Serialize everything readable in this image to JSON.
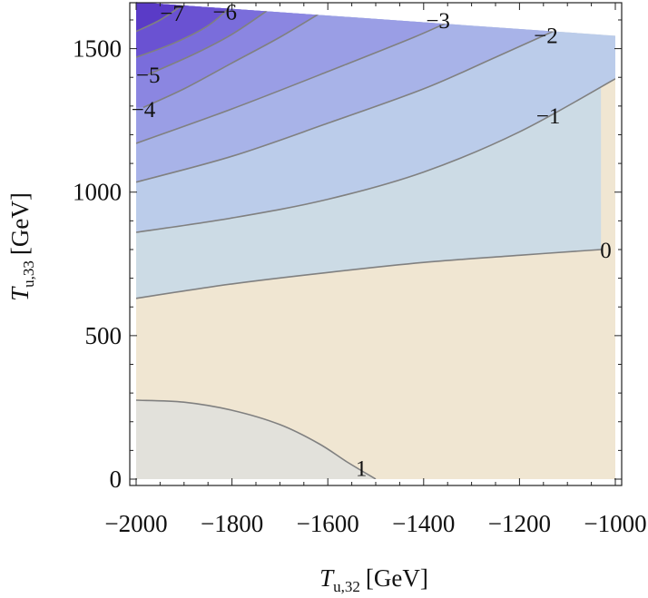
{
  "chart_data": {
    "type": "contour",
    "title": "",
    "xlabel": {
      "main": "T",
      "sub": "u,32",
      "unit": "[GeV]"
    },
    "ylabel": {
      "main": "T",
      "sub": "u,33",
      "unit": "[GeV]"
    },
    "xlim": [
      -2000,
      -1000
    ],
    "ylim": [
      0,
      1660
    ],
    "x_ticks": [
      {
        "value": -2000,
        "label": "−2000"
      },
      {
        "value": -1800,
        "label": "−1800"
      },
      {
        "value": -1600,
        "label": "−1600"
      },
      {
        "value": -1400,
        "label": "−1400"
      },
      {
        "value": -1200,
        "label": "−1200"
      },
      {
        "value": -1000,
        "label": "−1000"
      }
    ],
    "y_ticks": [
      {
        "value": 0,
        "label": "0"
      },
      {
        "value": 500,
        "label": "500"
      },
      {
        "value": 1000,
        "label": "1000"
      },
      {
        "value": 1500,
        "label": "1500"
      }
    ],
    "region_upper_boundary": [
      [
        -2000,
        1662
      ],
      [
        -1000,
        1545
      ]
    ],
    "contours": [
      {
        "level": 1,
        "label": "1",
        "label_pos": [
          -1530,
          40
        ],
        "points": [
          [
            -2000,
            275
          ],
          [
            -1900,
            268
          ],
          [
            -1800,
            240
          ],
          [
            -1700,
            190
          ],
          [
            -1620,
            125
          ],
          [
            -1560,
            60
          ],
          [
            -1500,
            0
          ]
        ]
      },
      {
        "level": 0,
        "label": "0",
        "label_pos": [
          -1020,
          800
        ],
        "points": [
          [
            -2000,
            630
          ],
          [
            -1800,
            680
          ],
          [
            -1600,
            720
          ],
          [
            -1400,
            755
          ],
          [
            -1200,
            780
          ],
          [
            -1030,
            800
          ]
        ]
      },
      {
        "level": -1,
        "label": "−1",
        "label_pos": [
          -1140,
          1268
        ],
        "points": [
          [
            -2000,
            860
          ],
          [
            -1800,
            910
          ],
          [
            -1600,
            975
          ],
          [
            -1400,
            1070
          ],
          [
            -1200,
            1210
          ],
          [
            -1000,
            1395
          ]
        ]
      },
      {
        "level": -2,
        "label": "−2",
        "label_pos": [
          -1145,
          1548
        ],
        "points": [
          [
            -2000,
            1035
          ],
          [
            -1800,
            1125
          ],
          [
            -1600,
            1240
          ],
          [
            -1400,
            1360
          ],
          [
            -1250,
            1470
          ],
          [
            -1130,
            1560
          ]
        ]
      },
      {
        "level": -3,
        "label": "−3",
        "label_pos": [
          -1370,
          1600
        ],
        "points": [
          [
            -2000,
            1170
          ],
          [
            -1800,
            1290
          ],
          [
            -1600,
            1420
          ],
          [
            -1420,
            1540
          ],
          [
            -1320,
            1615
          ]
        ]
      },
      {
        "level": -4,
        "label": "−4",
        "label_pos": [
          -1985,
          1290
        ],
        "points": [
          [
            -1985,
            1295
          ],
          [
            -1900,
            1360
          ],
          [
            -1800,
            1450
          ],
          [
            -1700,
            1540
          ],
          [
            -1600,
            1640
          ]
        ]
      },
      {
        "level": -5,
        "label": "−5",
        "label_pos": [
          -1975,
          1410
        ],
        "points": [
          [
            -1975,
            1410
          ],
          [
            -1880,
            1480
          ],
          [
            -1800,
            1550
          ],
          [
            -1720,
            1640
          ]
        ]
      },
      {
        "level": -6,
        "label": "−6",
        "label_pos": [
          -1815,
          1630
        ],
        "points": [
          [
            -2000,
            1470
          ],
          [
            -1920,
            1520
          ],
          [
            -1850,
            1580
          ],
          [
            -1800,
            1650
          ]
        ]
      },
      {
        "level": -7,
        "label": "−7",
        "label_pos": [
          -1925,
          1625
        ],
        "points": [
          [
            -2000,
            1560
          ],
          [
            -1950,
            1600
          ],
          [
            -1900,
            1655
          ]
        ]
      }
    ],
    "band_colors": [
      "#f0e6d2",
      "#e2e1db",
      "#ccdbe5",
      "#bbccea",
      "#a8b3e8",
      "#9a9ee5",
      "#8b86e1",
      "#7a6ddb",
      "#6a52d2",
      "#5a3bc7"
    ],
    "contour_line_color": "#808080"
  }
}
